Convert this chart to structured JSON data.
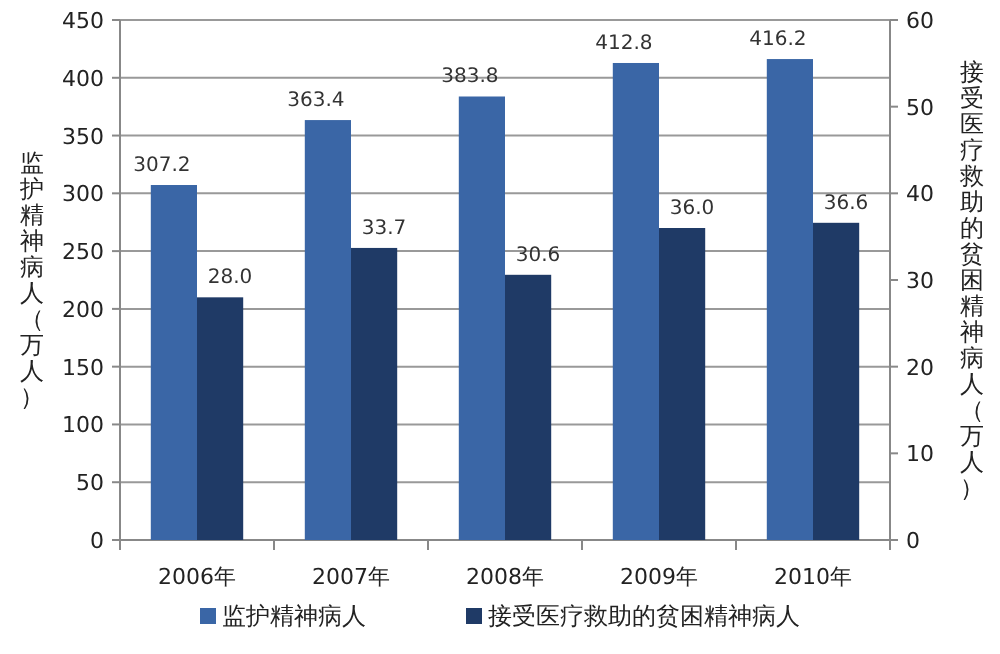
{
  "chart_data": {
    "type": "bar",
    "categories": [
      "2006年",
      "2007年",
      "2008年",
      "2009年",
      "2010年"
    ],
    "ylabel": "监护精神病人（万人）",
    "y2label": "接受医疗救助的贫困精神病人（万人）",
    "series": [
      {
        "name": "监护精神病人",
        "color": "#3a66a6",
        "values": [
          307.2,
          363.4,
          383.8,
          412.8,
          416.2
        ]
      },
      {
        "name": "接受医疗救助的贫困精神病人",
        "color": "#1f3a66",
        "values": [
          28.0,
          33.7,
          30.6,
          36.0,
          36.6
        ],
        "axis": "y2",
        "value_labels": [
          "28.0",
          "33.7",
          "30.6",
          "36.0",
          "36.6"
        ]
      }
    ],
    "ylim": [
      0,
      450
    ],
    "yticks": [
      0,
      50,
      100,
      150,
      200,
      250,
      300,
      350,
      400,
      450
    ],
    "y2lim": [
      0,
      60
    ],
    "y2ticks": [
      0,
      10,
      20,
      30,
      40,
      50,
      60
    ],
    "grid": "y",
    "legend": "bottom",
    "data_labels": true
  }
}
